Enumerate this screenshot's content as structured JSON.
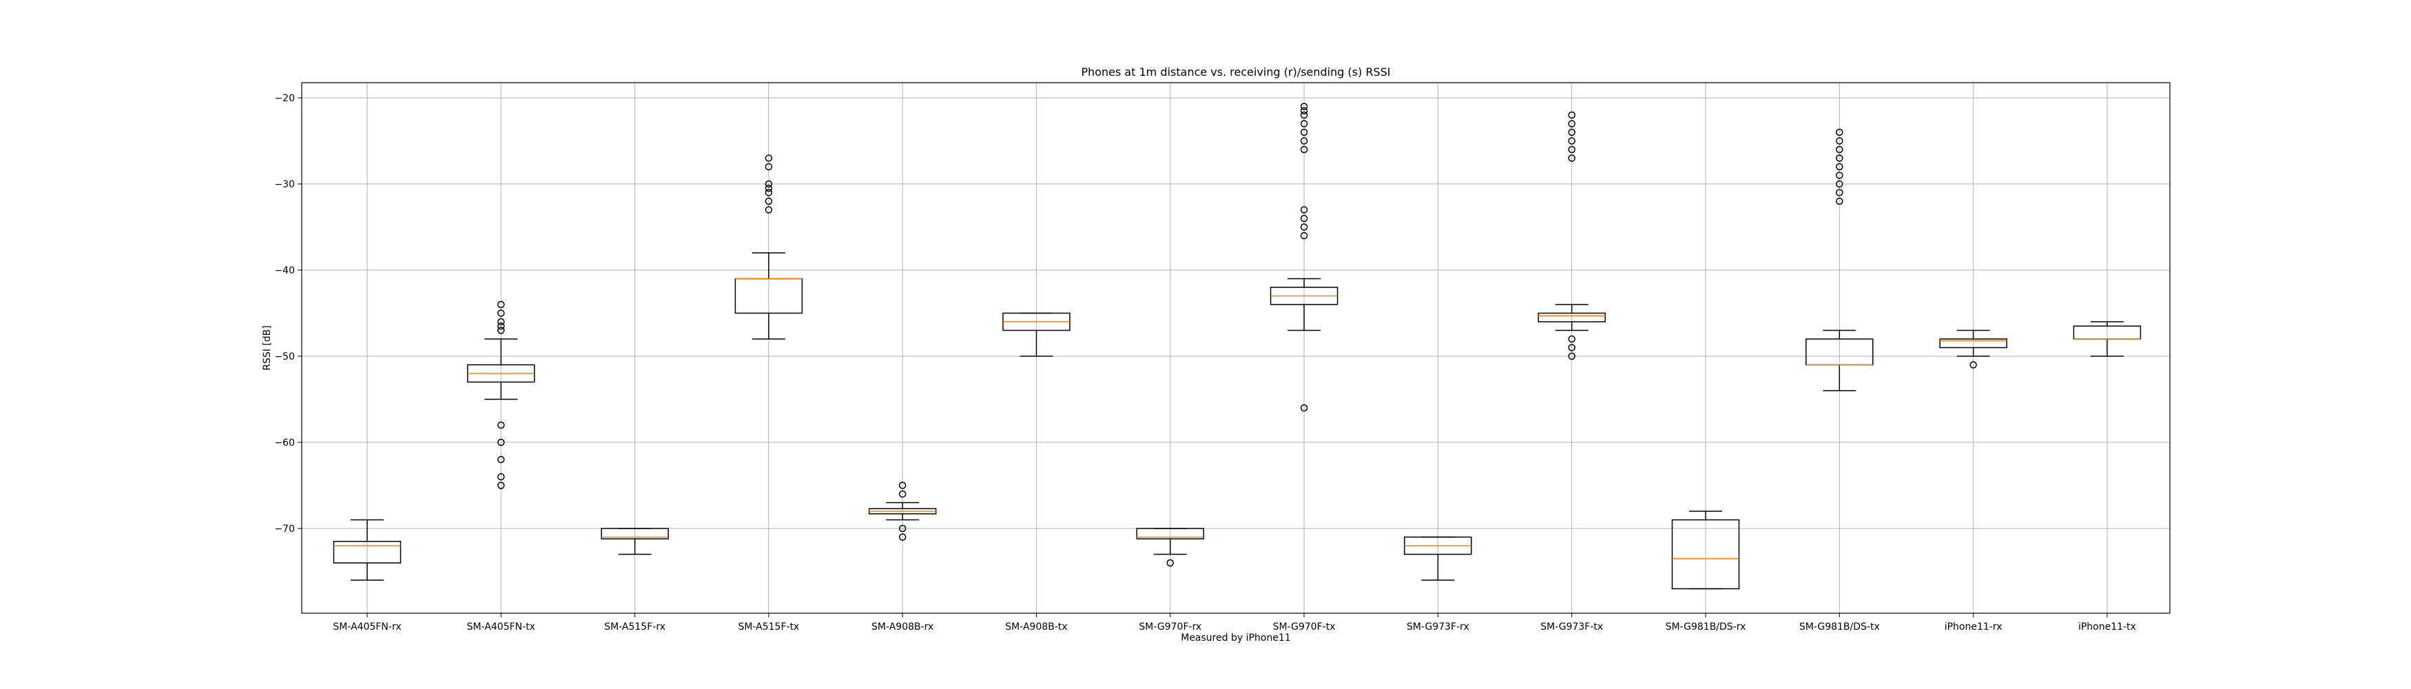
{
  "chart_data": {
    "type": "box",
    "title": "Phones at 1m distance vs. receiving (r)/sending (s) RSSI",
    "xlabel": "Measured by iPhone11",
    "ylabel": "RSSI [dB]",
    "ylim": [
      -78.5,
      -18.3
    ],
    "yticks": [
      -20,
      -30,
      -40,
      -50,
      -60,
      -70
    ],
    "grid": true,
    "colors": {
      "box": "#000000",
      "median": "#ff7f0e",
      "grid": "#b0b0b0"
    },
    "categories": [
      "SM-A405FN-rx",
      "SM-A405FN-tx",
      "SM-A515F-rx",
      "SM-A515F-tx",
      "SM-A908B-rx",
      "SM-A908B-tx",
      "SM-G970F-rx",
      "SM-G970F-tx",
      "SM-G973F-rx",
      "SM-G973F-tx",
      "SM-G981B/DS-rx",
      "SM-G981B/DS-tx",
      "iPhone11-rx",
      "iPhone11-tx"
    ],
    "boxes": [
      {
        "whislo": -76,
        "q1": -74,
        "med": -72,
        "q3": -71.5,
        "whishi": -69,
        "fliers": []
      },
      {
        "whislo": -55,
        "q1": -53,
        "med": -52,
        "q3": -51,
        "whishi": -48,
        "fliers": [
          -44,
          -45,
          -46,
          -46.5,
          -47,
          -58,
          -60,
          -62,
          -64,
          -65
        ]
      },
      {
        "whislo": -73,
        "q1": -71.2,
        "med": -71,
        "q3": -70,
        "whishi": -70,
        "fliers": []
      },
      {
        "whislo": -48,
        "q1": -45,
        "med": -41,
        "q3": -41,
        "whishi": -38,
        "fliers": [
          -27,
          -28,
          -30,
          -30.5,
          -31,
          -32,
          -33
        ]
      },
      {
        "whislo": -69,
        "q1": -68.3,
        "med": -68,
        "q3": -67.7,
        "whishi": -67,
        "fliers": [
          -65,
          -66,
          -70,
          -71
        ]
      },
      {
        "whislo": -50,
        "q1": -47,
        "med": -46,
        "q3": -45,
        "whishi": -45,
        "fliers": []
      },
      {
        "whislo": -73,
        "q1": -71.2,
        "med": -71,
        "q3": -70,
        "whishi": -70,
        "fliers": [
          -74
        ]
      },
      {
        "whislo": -47,
        "q1": -44,
        "med": -43,
        "q3": -42,
        "whishi": -41,
        "fliers": [
          -21,
          -21.5,
          -22,
          -23,
          -24,
          -25,
          -26,
          -33,
          -34,
          -35,
          -36,
          -56
        ]
      },
      {
        "whislo": -76,
        "q1": -73,
        "med": -72,
        "q3": -71,
        "whishi": -71,
        "fliers": []
      },
      {
        "whislo": -47,
        "q1": -46,
        "med": -45.3,
        "q3": -45,
        "whishi": -44,
        "fliers": [
          -22,
          -23,
          -24,
          -25,
          -26,
          -27,
          -48,
          -49,
          -50
        ]
      },
      {
        "whislo": -77,
        "q1": -77,
        "med": -73.5,
        "q3": -69,
        "whishi": -68,
        "fliers": []
      },
      {
        "whislo": -54,
        "q1": -51,
        "med": -51,
        "q3": -48,
        "whishi": -47,
        "fliers": [
          -24,
          -25,
          -26,
          -27,
          -28,
          -29,
          -30,
          -31,
          -32
        ]
      },
      {
        "whislo": -50,
        "q1": -49,
        "med": -48.2,
        "q3": -48,
        "whishi": -47,
        "fliers": [
          -51
        ]
      },
      {
        "whislo": -50,
        "q1": -48,
        "med": -48,
        "q3": -46.5,
        "whishi": -46,
        "fliers": []
      }
    ]
  }
}
